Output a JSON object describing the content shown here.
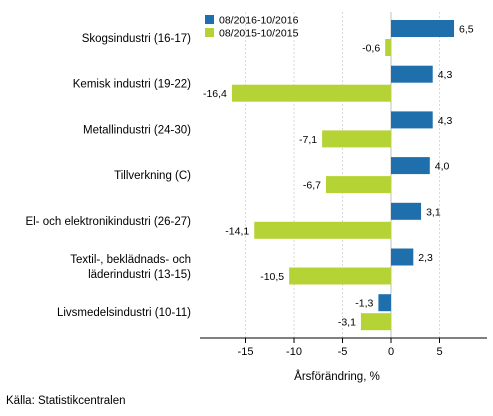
{
  "chart_data": {
    "type": "bar",
    "orientation": "horizontal",
    "categories": [
      [
        "Skogsindustri (16-17)"
      ],
      [
        "Kemisk industri (19-22)"
      ],
      [
        "Metallindustri (24-30)"
      ],
      [
        "Tillverkning (C)"
      ],
      [
        "El- och elektronikindustri (26-27)"
      ],
      [
        "Textil-, beklädnads- och",
        "läderindustri (13-15)"
      ],
      [
        "Livsmedelsindustri (10-11)"
      ]
    ],
    "series": [
      {
        "name": "08/2016-10/2016",
        "color": "#1f6fad",
        "values": [
          6.5,
          4.3,
          4.3,
          4.0,
          3.1,
          2.3,
          -1.3
        ],
        "labels": [
          "6,5",
          "4,3",
          "4,3",
          "4,0",
          "3,1",
          "2,3",
          "-1,3"
        ]
      },
      {
        "name": "08/2015-10/2015",
        "color": "#b5d334",
        "values": [
          -0.6,
          -16.4,
          -7.1,
          -6.7,
          -14.1,
          -10.5,
          -3.1
        ],
        "labels": [
          "-0,6",
          "-16,4",
          "-7,1",
          "-6,7",
          "-14,1",
          "-10,5",
          "-3,1"
        ]
      }
    ],
    "xlim": [
      -20,
      10
    ],
    "xticks": [
      -15,
      -10,
      -5,
      0,
      5
    ],
    "xtick_labels": [
      "-15",
      "-10",
      "-5",
      "0",
      "5"
    ],
    "xlabel": "Årsförändring, %",
    "grid": "vertical",
    "legend": "top-left"
  },
  "source": "Källa: Statistikcentralen"
}
